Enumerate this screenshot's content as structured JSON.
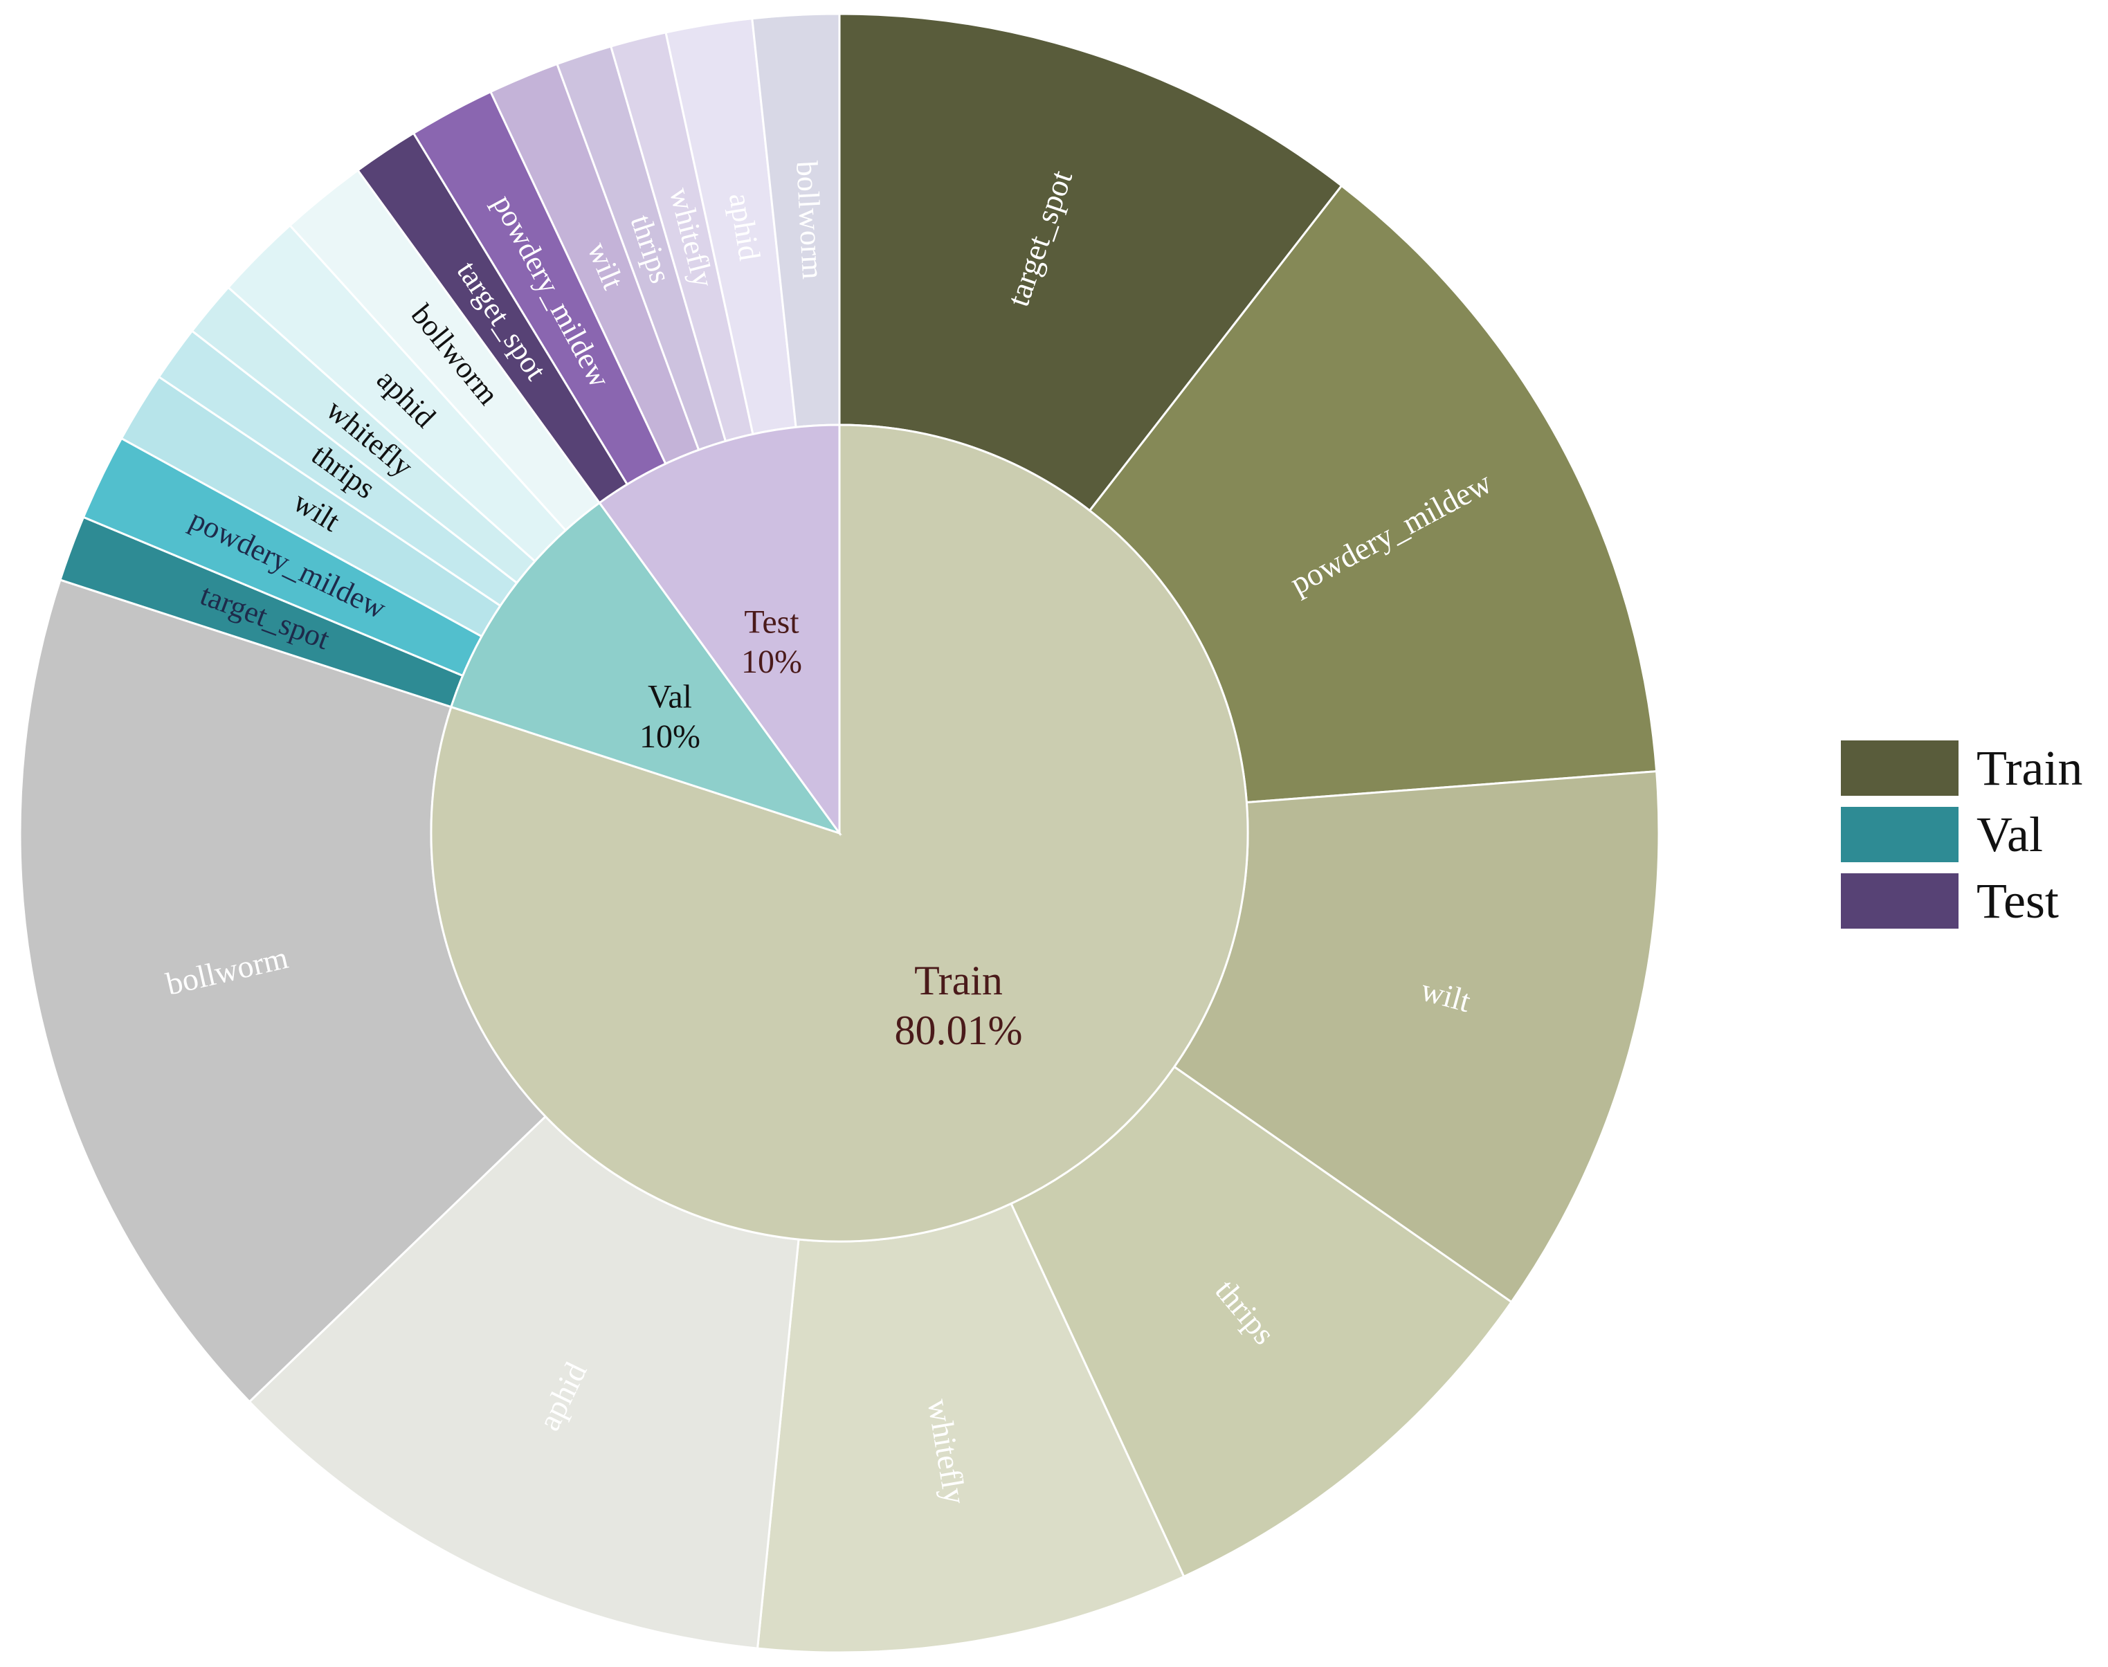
{
  "chart_data": {
    "type": "sunburst",
    "title": "",
    "inner": [
      {
        "name": "Train",
        "label": "Train",
        "percent_label": "80.01%",
        "value": 80.01,
        "color": "#cbcdb0",
        "label_color": "#4a1a1a"
      },
      {
        "name": "Val",
        "label": "Val",
        "percent_label": "10%",
        "value": 10,
        "color": "#8ecfcb",
        "label_color": "#111111"
      },
      {
        "name": "Test",
        "label": "Test",
        "percent_label": "10%",
        "value": 10,
        "color": "#cebfe1",
        "label_color": "#4a1a1a"
      }
    ],
    "outer": [
      {
        "parent": "Train",
        "name": "target_spot",
        "value": 10.5,
        "color": "#595c3b",
        "label_color": "#ffffff"
      },
      {
        "parent": "Train",
        "name": "powdery_mildew",
        "value": 13.3,
        "color": "#858957",
        "label_color": "#ffffff"
      },
      {
        "parent": "Train",
        "name": "wilt",
        "value": 10.9,
        "color": "#b8ba96",
        "label_color": "#ffffff"
      },
      {
        "parent": "Train",
        "name": "thrips",
        "value": 8.4,
        "color": "#cbceaf",
        "label_color": "#ffffff"
      },
      {
        "parent": "Train",
        "name": "whitefly",
        "value": 8.5,
        "color": "#dbddc8",
        "label_color": "#ffffff"
      },
      {
        "parent": "Train",
        "name": "aphid",
        "value": 11.2,
        "color": "#e6e7e1",
        "label_color": "#ffffff"
      },
      {
        "parent": "Train",
        "name": "bollworm",
        "value": 17.21,
        "color": "#c4c4c4",
        "label_color": "#ffffff"
      },
      {
        "parent": "Val",
        "name": "target_spot",
        "value": 1.3,
        "color": "#2e8b94",
        "label_color": "#1e2a4a"
      },
      {
        "parent": "Val",
        "name": "powdery_mildew",
        "value": 1.7,
        "color": "#52bfcd",
        "label_color": "#1e2a4a"
      },
      {
        "parent": "Val",
        "name": "wilt",
        "value": 1.4,
        "color": "#b7e4ea",
        "label_color": "#111111"
      },
      {
        "parent": "Val",
        "name": "thrips",
        "value": 1.1,
        "color": "#c3e9ee",
        "label_color": "#111111"
      },
      {
        "parent": "Val",
        "name": "whitefly",
        "value": 1.1,
        "color": "#d0eef1",
        "label_color": "#111111"
      },
      {
        "parent": "Val",
        "name": "aphid",
        "value": 1.7,
        "color": "#e0f4f6",
        "label_color": "#111111"
      },
      {
        "parent": "Val",
        "name": "bollworm",
        "value": 1.7,
        "color": "#ebf7f8",
        "label_color": "#111111"
      },
      {
        "parent": "Test",
        "name": "target_spot",
        "value": 1.3,
        "color": "#574275",
        "label_color": "#ffffff"
      },
      {
        "parent": "Test",
        "name": "powdery_mildew",
        "value": 1.7,
        "color": "#8a66b0",
        "label_color": "#ffffff"
      },
      {
        "parent": "Test",
        "name": "wilt",
        "value": 1.4,
        "color": "#c4b3d8",
        "label_color": "#ffffff"
      },
      {
        "parent": "Test",
        "name": "thrips",
        "value": 1.1,
        "color": "#cdc2df",
        "label_color": "#ffffff"
      },
      {
        "parent": "Test",
        "name": "whitefly",
        "value": 1.1,
        "color": "#dcd4ea",
        "label_color": "#ffffff"
      },
      {
        "parent": "Test",
        "name": "aphid",
        "value": 1.7,
        "color": "#e7e3f3",
        "label_color": "#ffffff"
      },
      {
        "parent": "Test",
        "name": "bollworm",
        "value": 1.7,
        "color": "#d8d8e6",
        "label_color": "#ffffff"
      }
    ],
    "legend": {
      "position": "right",
      "entries": [
        {
          "label": "Train",
          "color": "#595c3b"
        },
        {
          "label": "Val",
          "color": "#2e8b94"
        },
        {
          "label": "Test",
          "color": "#574275"
        }
      ]
    }
  }
}
